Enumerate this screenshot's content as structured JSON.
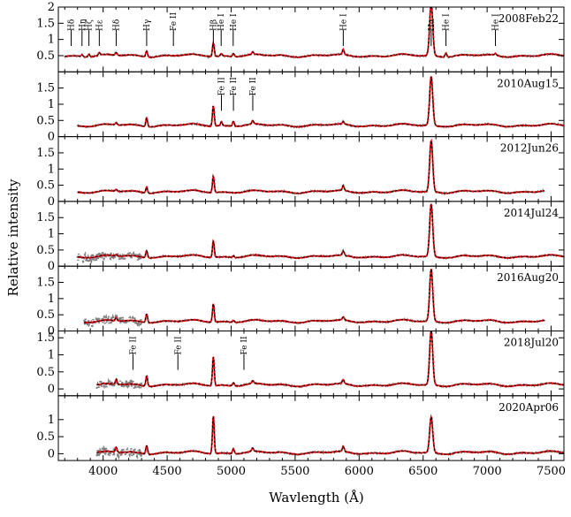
{
  "chart_data": {
    "type": "line",
    "title": "",
    "xlabel": "Wavlength (Å)",
    "ylabel": "Relative intensity",
    "xlim": [
      3650,
      7600
    ],
    "x_ticks": [
      4000,
      4500,
      5000,
      5500,
      6000,
      6500,
      7000,
      7500
    ],
    "x_tick_labels": [
      "4000",
      "4500",
      "5000",
      "5500",
      "6000",
      "6500",
      "7000",
      "7500"
    ],
    "grid": false,
    "series_styles": [
      {
        "name": "observed spectrum",
        "color": "#808080",
        "style": "dotted"
      },
      {
        "name": "model spectrum",
        "color": "#ff0000",
        "style": "solid"
      },
      {
        "name": "median spectrum",
        "color": "#000000",
        "style": "dashed"
      }
    ],
    "panels": [
      {
        "label": "2008Feb22",
        "ylim": [
          0,
          2
        ],
        "y_ticks": [
          0.5,
          1,
          1.5,
          2
        ],
        "y_tick_labels": [
          "0.5",
          "1",
          "1.5",
          "2"
        ],
        "baseline": 0.5,
        "x_range": [
          3700,
          7600
        ],
        "features": [
          {
            "x": 3835,
            "h": 0.05
          },
          {
            "x": 3889,
            "h": 0.08
          },
          {
            "x": 3970,
            "h": 0.08
          },
          {
            "x": 4102,
            "h": 0.09
          },
          {
            "x": 4340,
            "h": 0.18
          },
          {
            "x": 4861,
            "h": 0.43
          },
          {
            "x": 4924,
            "h": 0.08
          },
          {
            "x": 5018,
            "h": 0.1
          },
          {
            "x": 5169,
            "h": 0.07
          },
          {
            "x": 5876,
            "h": 0.15
          },
          {
            "x": 6563,
            "h": 1.62
          },
          {
            "x": 6678,
            "h": 0.12
          },
          {
            "x": 7065,
            "h": 0.05
          }
        ],
        "annotations": [
          {
            "label": "Hδ",
            "x": 3750
          },
          {
            "label": "Hη",
            "x": 3835
          },
          {
            "label": "Hζ",
            "x": 3889
          },
          {
            "label": "Hε",
            "x": 3970
          },
          {
            "label": "Hδ",
            "x": 4102
          },
          {
            "label": "Hγ",
            "x": 4340
          },
          {
            "label": "Fe II",
            "x": 4549
          },
          {
            "label": "Hβ",
            "x": 4861
          },
          {
            "label": "He I",
            "x": 4922
          },
          {
            "label": "He I",
            "x": 5016
          },
          {
            "label": "He I",
            "x": 5876
          },
          {
            "label": "Hα",
            "x": 6563
          },
          {
            "label": "He I",
            "x": 6678
          },
          {
            "label": "He I",
            "x": 7065
          }
        ]
      },
      {
        "label": "2010Aug15",
        "ylim": [
          0,
          2
        ],
        "y_ticks": [
          0,
          0.5,
          1,
          1.5
        ],
        "y_tick_labels": [
          "0",
          "0.5",
          "1",
          "1.5"
        ],
        "baseline": 0.35,
        "x_range": [
          3800,
          7600
        ],
        "features": [
          {
            "x": 4102,
            "h": 0.07
          },
          {
            "x": 4340,
            "h": 0.27
          },
          {
            "x": 4861,
            "h": 0.63
          },
          {
            "x": 4924,
            "h": 0.12
          },
          {
            "x": 5018,
            "h": 0.15
          },
          {
            "x": 5169,
            "h": 0.1
          },
          {
            "x": 5876,
            "h": 0.08
          },
          {
            "x": 6563,
            "h": 1.5
          }
        ],
        "annotations": [
          {
            "label": "Fe II",
            "x": 4924
          },
          {
            "label": "Fe II",
            "x": 5018
          },
          {
            "label": "Fe II",
            "x": 5169
          }
        ]
      },
      {
        "label": "2012Jun26",
        "ylim": [
          0,
          2
        ],
        "y_ticks": [
          0,
          0.5,
          1,
          1.5
        ],
        "y_tick_labels": [
          "0",
          "0.5",
          "1",
          "1.5"
        ],
        "baseline": 0.3,
        "x_range": [
          3800,
          7450
        ],
        "features": [
          {
            "x": 4102,
            "h": 0.06
          },
          {
            "x": 4340,
            "h": 0.18
          },
          {
            "x": 4861,
            "h": 0.5
          },
          {
            "x": 5876,
            "h": 0.15
          },
          {
            "x": 6563,
            "h": 1.58
          }
        ],
        "annotations": []
      },
      {
        "label": "2014Jul24",
        "ylim": [
          0,
          2
        ],
        "y_ticks": [
          0,
          0.5,
          1,
          1.5
        ],
        "y_tick_labels": [
          "0",
          "0.5",
          "1",
          "1.5"
        ],
        "baseline": 0.3,
        "x_range": [
          3800,
          7600
        ],
        "features": [
          {
            "x": 4102,
            "h": 0.05
          },
          {
            "x": 4340,
            "h": 0.22
          },
          {
            "x": 4861,
            "h": 0.5
          },
          {
            "x": 5018,
            "h": 0.05
          },
          {
            "x": 5876,
            "h": 0.14
          },
          {
            "x": 6563,
            "h": 1.62
          }
        ],
        "annotations": []
      },
      {
        "label": "2016Aug20",
        "ylim": [
          0,
          2
        ],
        "y_ticks": [
          0,
          0.5,
          1,
          1.5
        ],
        "y_tick_labels": [
          "0",
          "0.5",
          "1",
          "1.5"
        ],
        "baseline": 0.3,
        "x_range": [
          3850,
          7450
        ],
        "features": [
          {
            "x": 4102,
            "h": 0.1
          },
          {
            "x": 4340,
            "h": 0.27
          },
          {
            "x": 4861,
            "h": 0.57
          },
          {
            "x": 5018,
            "h": 0.06
          },
          {
            "x": 5876,
            "h": 0.1
          },
          {
            "x": 6563,
            "h": 1.62
          }
        ],
        "annotations": []
      },
      {
        "label": "2018Jul20",
        "ylim": [
          -0.2,
          1.7
        ],
        "y_ticks": [
          0,
          0.5,
          1,
          1.5
        ],
        "y_tick_labels": [
          "0",
          "0.5",
          "1",
          "1.5"
        ],
        "baseline": 0.12,
        "x_range": [
          3950,
          7600
        ],
        "features": [
          {
            "x": 4102,
            "h": 0.15
          },
          {
            "x": 4340,
            "h": 0.3
          },
          {
            "x": 4861,
            "h": 0.85
          },
          {
            "x": 5018,
            "h": 0.1
          },
          {
            "x": 5169,
            "h": 0.08
          },
          {
            "x": 5876,
            "h": 0.12
          },
          {
            "x": 6563,
            "h": 1.6
          }
        ],
        "annotations": [
          {
            "label": "Fe II",
            "x": 4233
          },
          {
            "label": "Fe II",
            "x": 4584
          },
          {
            "label": "Fe II",
            "x": 5100
          }
        ]
      },
      {
        "label": "2020Apr06",
        "ylim": [
          -0.2,
          1.7
        ],
        "y_ticks": [
          0,
          0.5,
          1
        ],
        "y_tick_labels": [
          "0",
          "0.5",
          "1"
        ],
        "baseline": 0.03,
        "x_range": [
          3950,
          7600
        ],
        "features": [
          {
            "x": 4102,
            "h": 0.15
          },
          {
            "x": 4340,
            "h": 0.25
          },
          {
            "x": 4861,
            "h": 1.1
          },
          {
            "x": 5018,
            "h": 0.15
          },
          {
            "x": 5169,
            "h": 0.1
          },
          {
            "x": 5876,
            "h": 0.15
          },
          {
            "x": 6563,
            "h": 1.05
          }
        ],
        "annotations": []
      }
    ]
  }
}
